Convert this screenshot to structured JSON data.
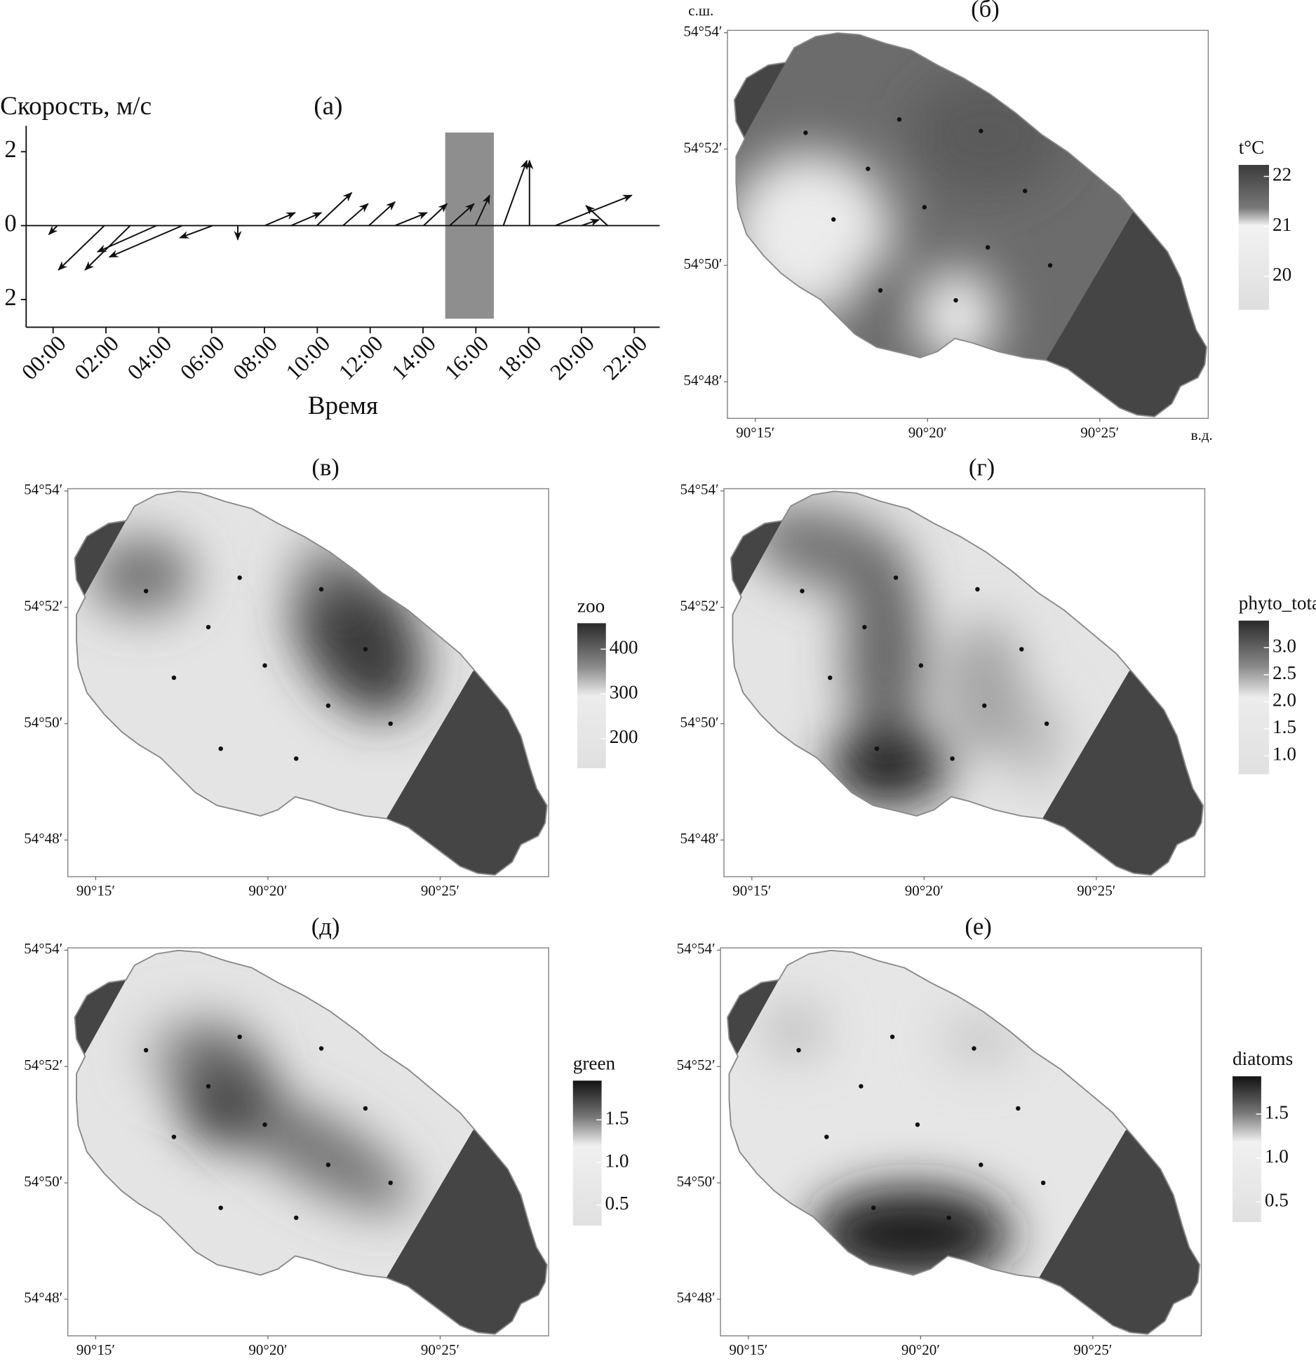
{
  "chart_data": [
    {
      "type": "quiver",
      "title": "(а)",
      "ylabel": "Скорость, м/с",
      "xlabel": "Время",
      "xlim": [
        -1.02,
        22.96
      ],
      "ylim": [
        -2.75,
        2.7
      ],
      "xticks": [
        {
          "value": 0,
          "label": "00:00"
        },
        {
          "value": 2,
          "label": "02:00"
        },
        {
          "value": 4,
          "label": "04:00"
        },
        {
          "value": 6,
          "label": "06:00"
        },
        {
          "value": 8,
          "label": "08:00"
        },
        {
          "value": 10,
          "label": "10:00"
        },
        {
          "value": 12,
          "label": "12:00"
        },
        {
          "value": 14,
          "label": "14:00"
        },
        {
          "value": 16,
          "label": "16:00"
        },
        {
          "value": 18,
          "label": "18:00"
        },
        {
          "value": 20,
          "label": "20:00"
        },
        {
          "value": 22,
          "label": "22:00"
        }
      ],
      "yticks": [
        2,
        0,
        {
          "value": -2,
          "label": "2"
        }
      ],
      "highlight": {
        "x": [
          14.84,
          16.68
        ],
        "y": [
          -2.52,
          2.52
        ],
        "color": "#8e8e8e"
      },
      "arrows": {
        "x": [
          0.16,
          1.94,
          2.92,
          3.91,
          4.89,
          6.04,
          6.99,
          8.01,
          9.0,
          9.98,
          10.97,
          11.95,
          12.94,
          14.02,
          15.01,
          15.99,
          17.04,
          18.03,
          19.01,
          20.99,
          20.0
        ],
        "x_end": [
          -0.16,
          0.2,
          1.21,
          1.68,
          2.13,
          4.8,
          6.99,
          9.16,
          10.15,
          11.3,
          11.92,
          12.94,
          14.15,
          14.91,
          15.93,
          16.52,
          17.93,
          18.03,
          21.9,
          20.17,
          20.66
        ],
        "y_end": [
          -0.24,
          -1.2,
          -1.2,
          -0.71,
          -0.85,
          -0.33,
          -0.38,
          0.35,
          0.35,
          0.89,
          0.59,
          0.64,
          0.35,
          0.59,
          0.59,
          0.82,
          1.76,
          1.76,
          0.82,
          0.54,
          0.16
        ]
      }
    },
    {
      "type": "heatmap",
      "title": "(б)",
      "legend_title": "t°C",
      "x_unit_label": "в.д.",
      "y_unit_label": "с.ш.",
      "clim": [
        19.33,
        22.23
      ],
      "cticks": [
        22,
        21,
        20
      ],
      "xlim": [
        14.19,
        28.15
      ],
      "ylim": [
        47.37,
        54.04
      ],
      "xticks": [
        {
          "value": 15,
          "label": "90°15′"
        },
        {
          "value": 20,
          "label": "90°20′"
        },
        {
          "value": 25,
          "label": "90°25′"
        }
      ],
      "yticks": [
        {
          "value": 54,
          "label": "54°54′"
        },
        {
          "value": 52,
          "label": "54°52′"
        },
        {
          "value": 50,
          "label": "54°50′"
        },
        {
          "value": 48,
          "label": "54°48′"
        }
      ],
      "stations": {
        "lon": [
          16.46,
          19.18,
          21.55,
          18.27,
          22.83,
          19.91,
          17.27,
          21.75,
          23.56,
          18.63,
          20.82
        ],
        "lat": [
          52.28,
          52.51,
          52.31,
          51.66,
          51.28,
          51.0,
          50.79,
          50.31,
          50.0,
          49.57,
          49.4
        ]
      }
    },
    {
      "type": "heatmap",
      "title": "(в)",
      "legend_title": "zoo",
      "clim": [
        134,
        458
      ],
      "cticks": [
        400,
        300,
        200
      ],
      "xlim": [
        14.19,
        28.15
      ],
      "ylim": [
        47.37,
        54.04
      ],
      "xticks": [
        {
          "value": 15,
          "label": "90°15′"
        },
        {
          "value": 20,
          "label": "90°20′"
        },
        {
          "value": 25,
          "label": "90°25′"
        }
      ],
      "yticks": [
        {
          "value": 54,
          "label": "54°54′"
        },
        {
          "value": 52,
          "label": "54°52′"
        },
        {
          "value": 50,
          "label": "54°50′"
        },
        {
          "value": 48,
          "label": "54°48′"
        }
      ],
      "stations": {
        "lon": [
          16.46,
          19.18,
          21.55,
          18.27,
          22.83,
          19.91,
          17.27,
          21.75,
          23.56,
          18.63,
          20.82
        ],
        "lat": [
          52.28,
          52.51,
          52.31,
          51.66,
          51.28,
          51.0,
          50.79,
          50.31,
          50.0,
          49.57,
          49.4
        ]
      }
    },
    {
      "type": "heatmap",
      "title": "(г)",
      "legend_title": "phyto_total",
      "clim": [
        0.66,
        3.5
      ],
      "cticks": [
        {
          "value": 3,
          "label": "3.0"
        },
        2.5,
        {
          "value": 2,
          "label": "2.0"
        },
        1.5,
        {
          "value": 1,
          "label": "1.0"
        }
      ],
      "xlim": [
        14.19,
        28.15
      ],
      "ylim": [
        47.37,
        54.04
      ],
      "xticks": [
        {
          "value": 15,
          "label": "90°15′"
        },
        {
          "value": 20,
          "label": "90°20′"
        },
        {
          "value": 25,
          "label": "90°25′"
        }
      ],
      "yticks": [
        {
          "value": 54,
          "label": "54°54′"
        },
        {
          "value": 52,
          "label": "54°52′"
        },
        {
          "value": 50,
          "label": "54°50′"
        },
        {
          "value": 48,
          "label": "54°48′"
        }
      ],
      "stations": {
        "lon": [
          16.46,
          19.18,
          21.55,
          18.27,
          22.83,
          19.91,
          17.27,
          21.75,
          23.56,
          18.63,
          20.82
        ],
        "lat": [
          52.28,
          52.51,
          52.31,
          51.66,
          51.28,
          51.0,
          50.79,
          50.31,
          50.0,
          49.57,
          49.4
        ]
      }
    },
    {
      "type": "heatmap",
      "title": "(д)",
      "legend_title": "green",
      "clim": [
        0.26,
        1.96
      ],
      "cticks": [
        1.5,
        {
          "value": 1,
          "label": "1.0"
        },
        0.5
      ],
      "xlim": [
        14.19,
        28.15
      ],
      "ylim": [
        47.37,
        54.04
      ],
      "xticks": [
        {
          "value": 15,
          "label": "90°15′"
        },
        {
          "value": 20,
          "label": "90°20′"
        },
        {
          "value": 25,
          "label": "90°25′"
        }
      ],
      "yticks": [
        {
          "value": 54,
          "label": "54°54′"
        },
        {
          "value": 52,
          "label": "54°52′"
        },
        {
          "value": 50,
          "label": "54°50′"
        },
        {
          "value": 48,
          "label": "54°48′"
        }
      ],
      "stations": {
        "lon": [
          16.46,
          19.18,
          21.55,
          18.27,
          22.83,
          19.91,
          17.27,
          21.75,
          23.56,
          18.63,
          20.82
        ],
        "lat": [
          52.28,
          52.51,
          52.31,
          51.66,
          51.28,
          51.0,
          50.79,
          50.31,
          50.0,
          49.57,
          49.4
        ]
      }
    },
    {
      "type": "heatmap",
      "title": "(е)",
      "legend_title": "diatoms",
      "clim": [
        0.27,
        1.93
      ],
      "cticks": [
        1.5,
        {
          "value": 1,
          "label": "1.0"
        },
        0.5
      ],
      "xlim": [
        14.19,
        28.15
      ],
      "ylim": [
        47.37,
        54.04
      ],
      "xticks": [
        {
          "value": 15,
          "label": "90°15′"
        },
        {
          "value": 20,
          "label": "90°20′"
        },
        {
          "value": 25,
          "label": "90°25′"
        }
      ],
      "yticks": [
        {
          "value": 54,
          "label": "54°54′"
        },
        {
          "value": 52,
          "label": "54°52′"
        },
        {
          "value": 50,
          "label": "54°50′"
        },
        {
          "value": 48,
          "label": "54°48′"
        }
      ],
      "stations": {
        "lon": [
          16.46,
          19.18,
          21.55,
          18.27,
          22.83,
          19.91,
          17.27,
          21.75,
          23.56,
          18.63,
          20.82
        ],
        "lat": [
          52.28,
          52.51,
          52.31,
          51.66,
          51.28,
          51.0,
          50.79,
          50.31,
          50.0,
          49.57,
          49.4
        ]
      }
    }
  ]
}
